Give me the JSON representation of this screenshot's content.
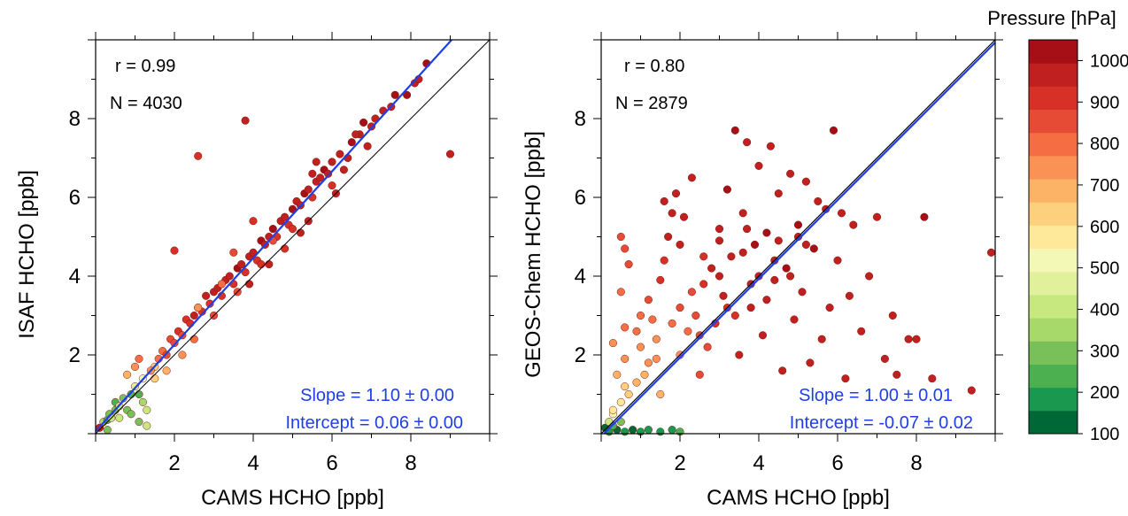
{
  "chart_data": [
    {
      "type": "scatter",
      "xlabel": "CAMS HCHO [ppb]",
      "ylabel": "ISAF HCHO [ppb]",
      "xlim": [
        0,
        10
      ],
      "ylim": [
        0,
        10
      ],
      "xticks": [
        2,
        4,
        6,
        8
      ],
      "yticks": [
        2,
        4,
        6,
        8
      ],
      "stats": {
        "r": "r =  0.99",
        "n": "N = 4030"
      },
      "fit_text": {
        "slope": "Slope = 1.10  ± 0.00",
        "intercept": "Intercept = 0.06 ± 0.00"
      },
      "fit_line": {
        "slope": 1.1,
        "intercept": 0.06,
        "color": "#1f3fe6"
      },
      "one_to_one": {
        "color": "#000000"
      },
      "points": [
        [
          0.1,
          0.15,
          980
        ],
        [
          0.2,
          0.3,
          350
        ],
        [
          0.3,
          0.35,
          250
        ],
        [
          0.35,
          0.5,
          300
        ],
        [
          0.4,
          0.4,
          420
        ],
        [
          0.5,
          0.6,
          320
        ],
        [
          0.5,
          0.8,
          260
        ],
        [
          0.6,
          0.7,
          380
        ],
        [
          0.7,
          0.9,
          280
        ],
        [
          0.8,
          0.6,
          300
        ],
        [
          0.9,
          1.0,
          230
        ],
        [
          1.0,
          1.2,
          450
        ],
        [
          1.1,
          1.0,
          260
        ],
        [
          1.2,
          0.8,
          350
        ],
        [
          1.2,
          1.4,
          520
        ],
        [
          1.3,
          0.6,
          410
        ],
        [
          0.8,
          1.5,
          700
        ],
        [
          1.0,
          1.7,
          720
        ],
        [
          1.1,
          1.9,
          780
        ],
        [
          1.5,
          1.7,
          650
        ],
        [
          1.3,
          0.2,
          430
        ],
        [
          1.4,
          1.6,
          750
        ],
        [
          1.6,
          1.9,
          820
        ],
        [
          1.7,
          2.1,
          800
        ],
        [
          1.8,
          2.0,
          860
        ],
        [
          1.9,
          2.4,
          840
        ],
        [
          2.0,
          2.3,
          880
        ],
        [
          2.1,
          2.6,
          900
        ],
        [
          2.2,
          2.5,
          870
        ],
        [
          2.3,
          2.9,
          920
        ],
        [
          2.4,
          2.8,
          900
        ],
        [
          2.5,
          3.0,
          940
        ],
        [
          2.6,
          3.2,
          960
        ],
        [
          2.7,
          3.1,
          900
        ],
        [
          2.8,
          3.5,
          970
        ],
        [
          2.9,
          3.3,
          930
        ],
        [
          3.0,
          3.6,
          960
        ],
        [
          3.1,
          3.7,
          990
        ],
        [
          3.2,
          3.5,
          900
        ],
        [
          3.3,
          3.9,
          960
        ],
        [
          3.4,
          4.0,
          980
        ],
        [
          3.5,
          3.8,
          920
        ],
        [
          3.6,
          4.2,
          1000
        ],
        [
          3.7,
          4.3,
          950
        ],
        [
          3.8,
          4.1,
          890
        ],
        [
          3.9,
          4.5,
          990
        ],
        [
          4.0,
          4.6,
          960
        ],
        [
          4.1,
          4.4,
          920
        ],
        [
          4.2,
          4.9,
          1000
        ],
        [
          4.3,
          4.8,
          960
        ],
        [
          4.4,
          5.0,
          980
        ],
        [
          4.5,
          5.2,
          1000
        ],
        [
          4.6,
          5.0,
          930
        ],
        [
          4.7,
          5.4,
          990
        ],
        [
          4.8,
          5.5,
          960
        ],
        [
          4.9,
          5.3,
          910
        ],
        [
          5.0,
          5.7,
          1000
        ],
        [
          5.1,
          5.9,
          980
        ],
        [
          5.2,
          5.8,
          940
        ],
        [
          5.3,
          6.1,
          1000
        ],
        [
          5.4,
          6.2,
          970
        ],
        [
          5.5,
          6.0,
          920
        ],
        [
          5.6,
          6.4,
          990
        ],
        [
          5.7,
          6.5,
          960
        ],
        [
          5.8,
          6.7,
          1000
        ],
        [
          5.9,
          6.6,
          950
        ],
        [
          6.0,
          6.9,
          990
        ],
        [
          6.2,
          7.1,
          980
        ],
        [
          6.4,
          7.0,
          940
        ],
        [
          6.5,
          7.4,
          1000
        ],
        [
          6.7,
          7.6,
          970
        ],
        [
          6.8,
          7.9,
          1000
        ],
        [
          7.0,
          7.8,
          960
        ],
        [
          7.1,
          8.0,
          990
        ],
        [
          7.3,
          8.2,
          980
        ],
        [
          7.5,
          8.3,
          960
        ],
        [
          7.9,
          8.6,
          1000
        ],
        [
          8.1,
          8.9,
          960
        ],
        [
          8.2,
          9.0,
          990
        ],
        [
          8.4,
          9.4,
          1000
        ],
        [
          9.0,
          7.1,
          960
        ],
        [
          2.6,
          7.05,
          900
        ],
        [
          3.8,
          7.95,
          960
        ],
        [
          2.0,
          4.65,
          900
        ],
        [
          2.6,
          3.2,
          760
        ],
        [
          3.2,
          3.8,
          820
        ],
        [
          3.5,
          4.6,
          880
        ],
        [
          4.0,
          5.4,
          930
        ],
        [
          4.5,
          4.9,
          860
        ],
        [
          5.0,
          5.2,
          900
        ],
        [
          5.5,
          6.6,
          950
        ],
        [
          6.0,
          6.3,
          900
        ],
        [
          6.3,
          6.7,
          940
        ],
        [
          6.6,
          7.6,
          980
        ],
        [
          3.0,
          3.0,
          850
        ],
        [
          3.6,
          3.6,
          880
        ],
        [
          4.2,
          4.3,
          910
        ],
        [
          4.8,
          4.7,
          930
        ],
        [
          5.4,
          5.4,
          960
        ],
        [
          6.1,
          6.1,
          950
        ],
        [
          1.5,
          1.4,
          620
        ],
        [
          1.8,
          1.6,
          700
        ],
        [
          2.2,
          2.0,
          760
        ],
        [
          2.5,
          2.4,
          800
        ],
        [
          0.6,
          0.4,
          380
        ],
        [
          0.9,
          0.5,
          300
        ],
        [
          1.1,
          0.3,
          280
        ],
        [
          0.3,
          0.1,
          320
        ],
        [
          4.4,
          4.3,
          960
        ],
        [
          3.9,
          3.8,
          940
        ],
        [
          5.2,
          5.1,
          990
        ],
        [
          5.6,
          6.9,
          990
        ],
        [
          6.9,
          7.3,
          960
        ],
        [
          7.6,
          8.6,
          1000
        ]
      ]
    },
    {
      "type": "scatter",
      "xlabel": "CAMS HCHO [ppb]",
      "ylabel": "GEOS-Chem HCHO [ppb]",
      "xlim": [
        0,
        10
      ],
      "ylim": [
        0,
        10
      ],
      "xticks": [
        2,
        4,
        6,
        8
      ],
      "yticks": [
        2,
        4,
        6,
        8
      ],
      "stats": {
        "r": "r = 0.80",
        "n": "N = 2879"
      },
      "fit_text": {
        "slope": "Slope = 1.00 ± 0.01",
        "intercept": "Intercept = -0.07 ± 0.02"
      },
      "fit_line": {
        "slope": 1.0,
        "intercept": -0.07,
        "color": "#1f3fe6"
      },
      "one_to_one": {
        "color": "#000000"
      },
      "points": [
        [
          0.2,
          0.05,
          180
        ],
        [
          0.4,
          0.1,
          150
        ],
        [
          0.6,
          0.05,
          200
        ],
        [
          0.8,
          0.1,
          140
        ],
        [
          1.0,
          0.05,
          170
        ],
        [
          1.2,
          0.1,
          210
        ],
        [
          1.5,
          0.05,
          160
        ],
        [
          1.8,
          0.1,
          190
        ],
        [
          2.0,
          0.05,
          230
        ],
        [
          0.3,
          0.2,
          250
        ],
        [
          0.5,
          0.3,
          300
        ],
        [
          0.1,
          0.15,
          130
        ],
        [
          0.3,
          0.5,
          500
        ],
        [
          0.5,
          0.8,
          560
        ],
        [
          0.7,
          1.0,
          620
        ],
        [
          0.9,
          1.3,
          680
        ],
        [
          0.4,
          1.5,
          700
        ],
        [
          0.6,
          1.9,
          730
        ],
        [
          0.3,
          2.3,
          760
        ],
        [
          0.6,
          2.7,
          780
        ],
        [
          0.5,
          3.6,
          800
        ],
        [
          0.7,
          4.3,
          840
        ],
        [
          0.6,
          4.7,
          860
        ],
        [
          0.5,
          5.0,
          830
        ],
        [
          1.0,
          3.0,
          820
        ],
        [
          1.2,
          3.4,
          850
        ],
        [
          1.4,
          2.4,
          760
        ],
        [
          1.5,
          3.9,
          900
        ],
        [
          1.6,
          4.4,
          920
        ],
        [
          1.7,
          5.0,
          940
        ],
        [
          1.6,
          5.9,
          960
        ],
        [
          1.8,
          5.6,
          950
        ],
        [
          2.0,
          4.8,
          940
        ],
        [
          1.9,
          6.1,
          970
        ],
        [
          2.1,
          5.5,
          960
        ],
        [
          2.3,
          6.5,
          990
        ],
        [
          2.0,
          2.0,
          720
        ],
        [
          2.2,
          2.6,
          800
        ],
        [
          2.4,
          3.0,
          880
        ],
        [
          2.5,
          1.5,
          880
        ],
        [
          2.6,
          3.8,
          920
        ],
        [
          2.8,
          4.2,
          960
        ],
        [
          2.9,
          2.8,
          900
        ],
        [
          3.0,
          5.2,
          980
        ],
        [
          3.1,
          3.5,
          960
        ],
        [
          3.2,
          6.2,
          1000
        ],
        [
          3.3,
          4.5,
          980
        ],
        [
          3.4,
          7.7,
          1000
        ],
        [
          3.5,
          2.0,
          960
        ],
        [
          3.6,
          5.6,
          990
        ],
        [
          3.7,
          7.4,
          980
        ],
        [
          3.8,
          3.2,
          960
        ],
        [
          3.9,
          4.8,
          1000
        ],
        [
          4.0,
          6.8,
          990
        ],
        [
          4.1,
          2.5,
          970
        ],
        [
          4.2,
          5.1,
          1000
        ],
        [
          4.3,
          7.3,
          980
        ],
        [
          4.4,
          3.9,
          960
        ],
        [
          4.5,
          6.1,
          990
        ],
        [
          4.6,
          1.6,
          960
        ],
        [
          4.7,
          4.2,
          1000
        ],
        [
          4.8,
          6.6,
          980
        ],
        [
          4.9,
          2.9,
          960
        ],
        [
          5.0,
          5.3,
          1000
        ],
        [
          5.1,
          3.6,
          990
        ],
        [
          5.2,
          6.4,
          980
        ],
        [
          5.3,
          1.8,
          960
        ],
        [
          5.4,
          4.7,
          1000
        ],
        [
          5.5,
          5.9,
          990
        ],
        [
          5.6,
          2.4,
          960
        ],
        [
          5.8,
          3.2,
          980
        ],
        [
          5.9,
          7.7,
          1000
        ],
        [
          6.0,
          4.4,
          990
        ],
        [
          6.1,
          5.6,
          980
        ],
        [
          6.2,
          1.4,
          960
        ],
        [
          6.3,
          3.5,
          980
        ],
        [
          6.4,
          5.3,
          990
        ],
        [
          6.6,
          2.6,
          960
        ],
        [
          6.8,
          4.0,
          990
        ],
        [
          7.0,
          5.5,
          980
        ],
        [
          7.2,
          1.9,
          960
        ],
        [
          7.4,
          3.0,
          990
        ],
        [
          7.5,
          1.5,
          960
        ],
        [
          7.8,
          2.4,
          980
        ],
        [
          8.0,
          2.4,
          990
        ],
        [
          8.2,
          5.5,
          1000
        ],
        [
          8.4,
          1.4,
          960
        ],
        [
          9.4,
          1.1,
          980
        ],
        [
          9.9,
          4.6,
          960
        ],
        [
          1.5,
          1.0,
          700
        ],
        [
          1.2,
          1.8,
          740
        ],
        [
          1.8,
          2.8,
          820
        ],
        [
          2.3,
          3.6,
          870
        ],
        [
          2.7,
          2.2,
          860
        ],
        [
          3.0,
          4.0,
          940
        ],
        [
          3.4,
          3.0,
          920
        ],
        [
          3.6,
          4.6,
          960
        ],
        [
          4.0,
          4.0,
          960
        ],
        [
          4.2,
          3.4,
          940
        ],
        [
          4.5,
          4.9,
          990
        ],
        [
          4.8,
          4.0,
          970
        ],
        [
          5.2,
          4.8,
          990
        ],
        [
          2.5,
          2.5,
          860
        ],
        [
          3.2,
          3.2,
          910
        ],
        [
          3.8,
          3.8,
          950
        ],
        [
          4.4,
          4.4,
          970
        ],
        [
          5.0,
          5.0,
          990
        ],
        [
          5.7,
          5.7,
          990
        ],
        [
          1.0,
          2.2,
          760
        ],
        [
          1.3,
          2.9,
          800
        ],
        [
          2.0,
          3.2,
          860
        ],
        [
          2.6,
          4.5,
          930
        ],
        [
          3.0,
          4.9,
          960
        ],
        [
          3.7,
          5.2,
          990
        ],
        [
          0.2,
          0.3,
          420
        ],
        [
          0.3,
          0.6,
          560
        ],
        [
          0.6,
          1.2,
          640
        ],
        [
          1.1,
          1.5,
          700
        ],
        [
          1.4,
          1.9,
          740
        ],
        [
          0.9,
          2.6,
          780
        ]
      ]
    }
  ],
  "colorbar": {
    "title": "Pressure [hPa]",
    "min": 100,
    "max": 1050,
    "tick_labels": [
      "100",
      "200",
      "300",
      "400",
      "500",
      "600",
      "700",
      "800",
      "900",
      "1000"
    ],
    "colors": [
      "#006837",
      "#1a9850",
      "#4cb050",
      "#7ac05a",
      "#a6d96a",
      "#c7e77f",
      "#e1f09a",
      "#f4f8b6",
      "#fee99a",
      "#fdd07e",
      "#fdb365",
      "#f99254",
      "#f46d43",
      "#e64b35",
      "#d73027",
      "#c0201f",
      "#a50f15"
    ]
  }
}
